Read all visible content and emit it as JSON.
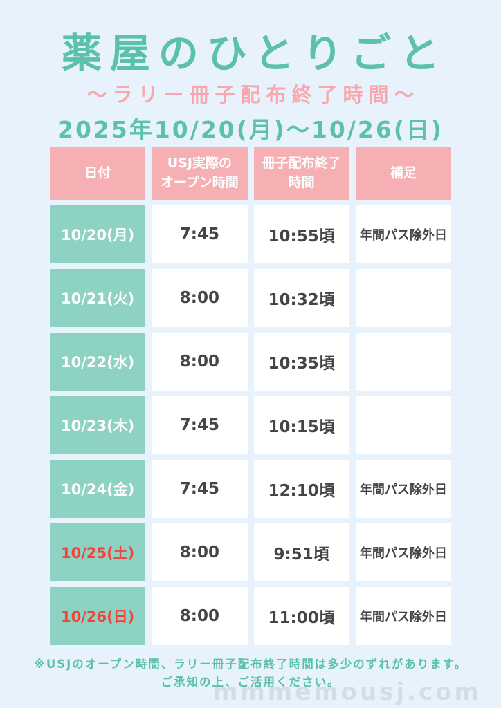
{
  "page": {
    "title": "薬屋のひとりごと",
    "subtitle": "〜ラリー冊子配布終了時間〜",
    "date_range": "2025年10/20(月)〜10/26(日)",
    "footer_note_line1": "※USJのオープン時間、ラリー冊子配布終了時間は多少のずれがあります。",
    "footer_note_line2": "ご承知の上、ご活用ください。",
    "watermark": "mmmemousj.com"
  },
  "colors": {
    "background": "#e7f2fc",
    "title_teal": "#5cc1ab",
    "subtitle_pink": "#f8a8ad",
    "header_cell_pink": "#f6afb2",
    "date_cell_teal": "#8dd2c2",
    "cell_text_dark": "#454545",
    "weekend_red": "#f04438",
    "watermark_gray": "#d4dde6"
  },
  "table": {
    "headers": [
      "日付",
      "USJ実際の\nオープン時間",
      "冊子配布終了\n時間",
      "補足"
    ],
    "rows": [
      {
        "date": "10/20(月)",
        "open_time": "7:45",
        "end_time": "10:55頃",
        "note": "年間パス除外日",
        "date_red": false
      },
      {
        "date": "10/21(火)",
        "open_time": "8:00",
        "end_time": "10:32頃",
        "note": "",
        "date_red": false
      },
      {
        "date": "10/22(水)",
        "open_time": "8:00",
        "end_time": "10:35頃",
        "note": "",
        "date_red": false
      },
      {
        "date": "10/23(木)",
        "open_time": "7:45",
        "end_time": "10:15頃",
        "note": "",
        "date_red": false
      },
      {
        "date": "10/24(金)",
        "open_time": "7:45",
        "end_time": "12:10頃",
        "note": "年間パス除外日",
        "date_red": false
      },
      {
        "date": "10/25(土)",
        "open_time": "8:00",
        "end_time": "9:51頃",
        "note": "年間パス除外日",
        "date_red": true
      },
      {
        "date": "10/26(日)",
        "open_time": "8:00",
        "end_time": "11:00頃",
        "note": "年間パス除外日",
        "date_red": true
      }
    ]
  }
}
